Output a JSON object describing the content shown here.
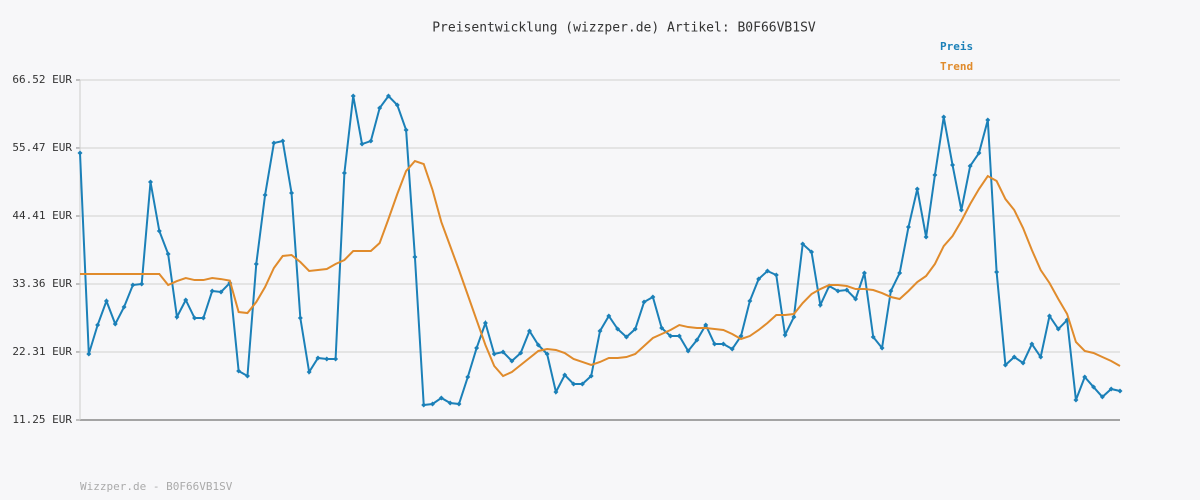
{
  "chart_data": {
    "type": "line",
    "title": "Preisentwicklung (wizzper.de) Artikel: B0F66VB1SV",
    "footer": "Wizzper.de - B0F66VB1SV",
    "legend": "top-right",
    "grid": true,
    "ylim": [
      11.25,
      66.52
    ],
    "yticks": [
      {
        "value": 11.25,
        "label": "11.25 EUR"
      },
      {
        "value": 22.31,
        "label": "22.31 EUR"
      },
      {
        "value": 33.36,
        "label": "33.36 EUR"
      },
      {
        "value": 44.41,
        "label": "44.41 EUR"
      },
      {
        "value": 55.47,
        "label": "55.47 EUR"
      },
      {
        "value": 66.52,
        "label": "66.52 EUR"
      }
    ],
    "series": [
      {
        "name": "Preis",
        "color": "#1b80b8",
        "markers": true,
        "values": [
          54.65,
          21.98,
          26.69,
          30.59,
          26.85,
          29.62,
          33.19,
          33.36,
          49.94,
          41.97,
          38.23,
          27.99,
          30.76,
          27.83,
          27.83,
          32.22,
          32.06,
          33.52,
          19.21,
          18.4,
          36.61,
          47.82,
          56.27,
          56.6,
          48.15,
          27.83,
          19.05,
          21.33,
          21.17,
          21.17,
          51.4,
          63.92,
          56.11,
          56.6,
          61.96,
          63.92,
          62.45,
          58.39,
          37.75,
          13.69,
          13.85,
          14.83,
          14.01,
          13.85,
          18.24,
          22.95,
          27.02,
          21.98,
          22.3,
          20.84,
          22.14,
          25.72,
          23.44,
          21.98,
          15.8,
          18.56,
          17.1,
          17.1,
          18.4,
          25.72,
          28.16,
          26.04,
          24.74,
          26.04,
          30.43,
          31.24,
          26.2,
          24.9,
          24.9,
          22.47,
          24.25,
          26.69,
          23.6,
          23.6,
          22.79,
          24.9,
          30.59,
          34.17,
          35.47,
          34.82,
          25.07,
          27.99,
          39.86,
          38.56,
          29.94,
          33.03,
          32.22,
          32.38,
          30.92,
          35.14,
          24.74,
          22.95,
          32.22,
          35.14,
          42.62,
          48.8,
          41.0,
          51.07,
          60.5,
          52.7,
          45.38,
          52.54,
          54.65,
          60.01,
          35.31,
          20.19,
          21.49,
          20.52,
          23.6,
          21.49,
          28.16,
          26.04,
          27.5,
          14.5,
          18.24,
          16.61,
          15.0,
          16.29,
          15.96
        ]
      },
      {
        "name": "Trend",
        "color": "#e08b2c",
        "markers": false,
        "values": [
          34.98,
          34.98,
          34.98,
          34.98,
          34.98,
          34.98,
          34.98,
          34.98,
          34.98,
          34.98,
          33.19,
          33.84,
          34.33,
          34.0,
          34.0,
          34.33,
          34.16,
          33.9,
          28.8,
          28.64,
          30.43,
          32.87,
          35.96,
          37.91,
          38.07,
          36.93,
          35.47,
          35.63,
          35.79,
          36.61,
          37.26,
          38.72,
          38.72,
          38.72,
          40.02,
          43.92,
          47.99,
          51.72,
          53.35,
          52.86,
          48.64,
          43.43,
          39.53,
          35.63,
          31.57,
          27.5,
          23.44,
          20.03,
          18.4,
          19.05,
          20.19,
          21.33,
          22.47,
          22.79,
          22.63,
          22.14,
          21.17,
          20.68,
          20.19,
          20.68,
          21.33,
          21.33,
          21.49,
          21.98,
          23.28,
          24.58,
          25.23,
          25.88,
          26.69,
          26.36,
          26.2,
          26.2,
          26.04,
          25.88,
          25.23,
          24.42,
          24.9,
          25.88,
          27.02,
          28.32,
          28.32,
          28.48,
          30.27,
          31.73,
          32.54,
          33.19,
          33.19,
          33.03,
          32.54,
          32.54,
          32.38,
          31.89,
          31.24,
          30.92,
          32.22,
          33.68,
          34.66,
          36.61,
          39.53,
          41.16,
          43.6,
          46.36,
          48.8,
          50.91,
          50.1,
          47.17,
          45.38,
          42.46,
          38.88,
          35.63,
          33.52,
          30.92,
          28.48,
          23.93,
          22.47,
          22.14,
          21.49,
          20.84,
          20.03
        ]
      }
    ]
  }
}
